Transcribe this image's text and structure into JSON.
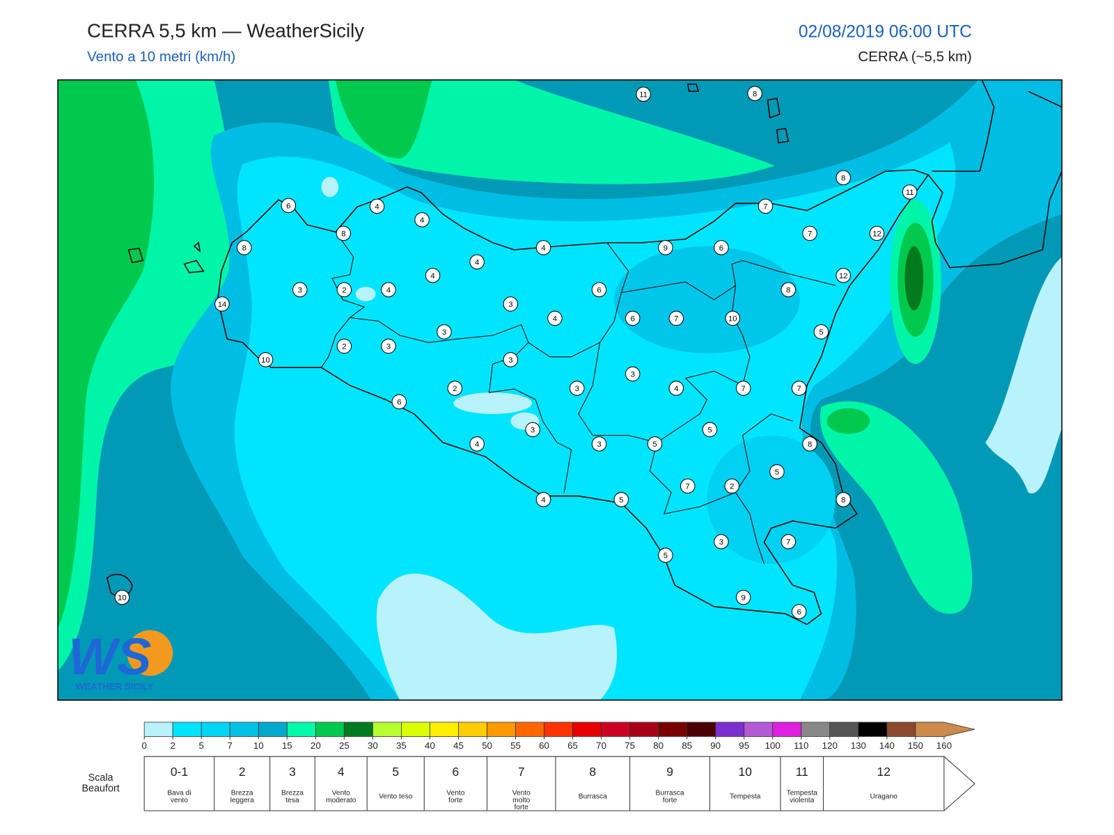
{
  "header": {
    "title": "CERRA 5,5 km — WeatherSicily",
    "subtitle": "Vento a 10 metri (km/h)",
    "datetime": "02/08/2019 06:00 UTC",
    "model": "CERRA (~5,5 km)"
  },
  "map": {
    "stations": [
      11,
      8,
      8,
      11,
      6,
      4,
      4,
      7,
      8,
      7,
      12,
      8,
      4,
      9,
      6,
      4,
      4,
      12,
      3,
      2,
      4,
      6,
      8,
      14,
      3,
      4,
      6,
      7,
      10,
      3,
      5,
      2,
      3,
      10,
      3,
      3,
      2,
      3,
      4,
      7,
      7,
      6,
      3,
      5,
      4,
      3,
      5,
      8,
      5,
      7,
      2,
      4,
      5,
      8,
      3,
      7,
      5,
      9,
      6,
      10
    ]
  },
  "colorbar": {
    "ticks": [
      0,
      2,
      5,
      7,
      10,
      15,
      20,
      25,
      30,
      35,
      40,
      45,
      50,
      55,
      60,
      65,
      70,
      75,
      80,
      85,
      90,
      95,
      100,
      110,
      120,
      130,
      140,
      150,
      160
    ],
    "colors": [
      "#b8f2fb",
      "#00e5ff",
      "#00d5f6",
      "#00c2e7",
      "#00a9cd",
      "#00fbab",
      "#00c94e",
      "#007a1e",
      "#b7ff2e",
      "#dcff00",
      "#ffef00",
      "#ffcc00",
      "#ff9900",
      "#ff6600",
      "#ff3300",
      "#e60000",
      "#cc0022",
      "#a80018",
      "#780000",
      "#4a0000",
      "#7b2fd0",
      "#b55ad6",
      "#e11fe1",
      "#888888",
      "#555555",
      "#000000",
      "#8b4a2e",
      "#cd8a4c"
    ]
  },
  "beaufort": {
    "label": "Scala Beaufort",
    "levels": [
      {
        "force": "0-1",
        "name": "Bava di vento"
      },
      {
        "force": 2,
        "name": "Brezza leggera"
      },
      {
        "force": 3,
        "name": "Brezza tesa"
      },
      {
        "force": 4,
        "name": "Vento moderato"
      },
      {
        "force": 5,
        "name": "Vento teso"
      },
      {
        "force": 6,
        "name": "Vento forte"
      },
      {
        "force": 7,
        "name": "Vento molto forte"
      },
      {
        "force": 8,
        "name": "Burrasca"
      },
      {
        "force": 9,
        "name": "Burrasca forte"
      },
      {
        "force": 10,
        "name": "Tempesta"
      },
      {
        "force": 11,
        "name": "Tempesta violenta"
      },
      {
        "force": 12,
        "name": "Uragano"
      }
    ]
  },
  "logo": {
    "mark": "WS",
    "name": "WEATHER SICILY"
  }
}
